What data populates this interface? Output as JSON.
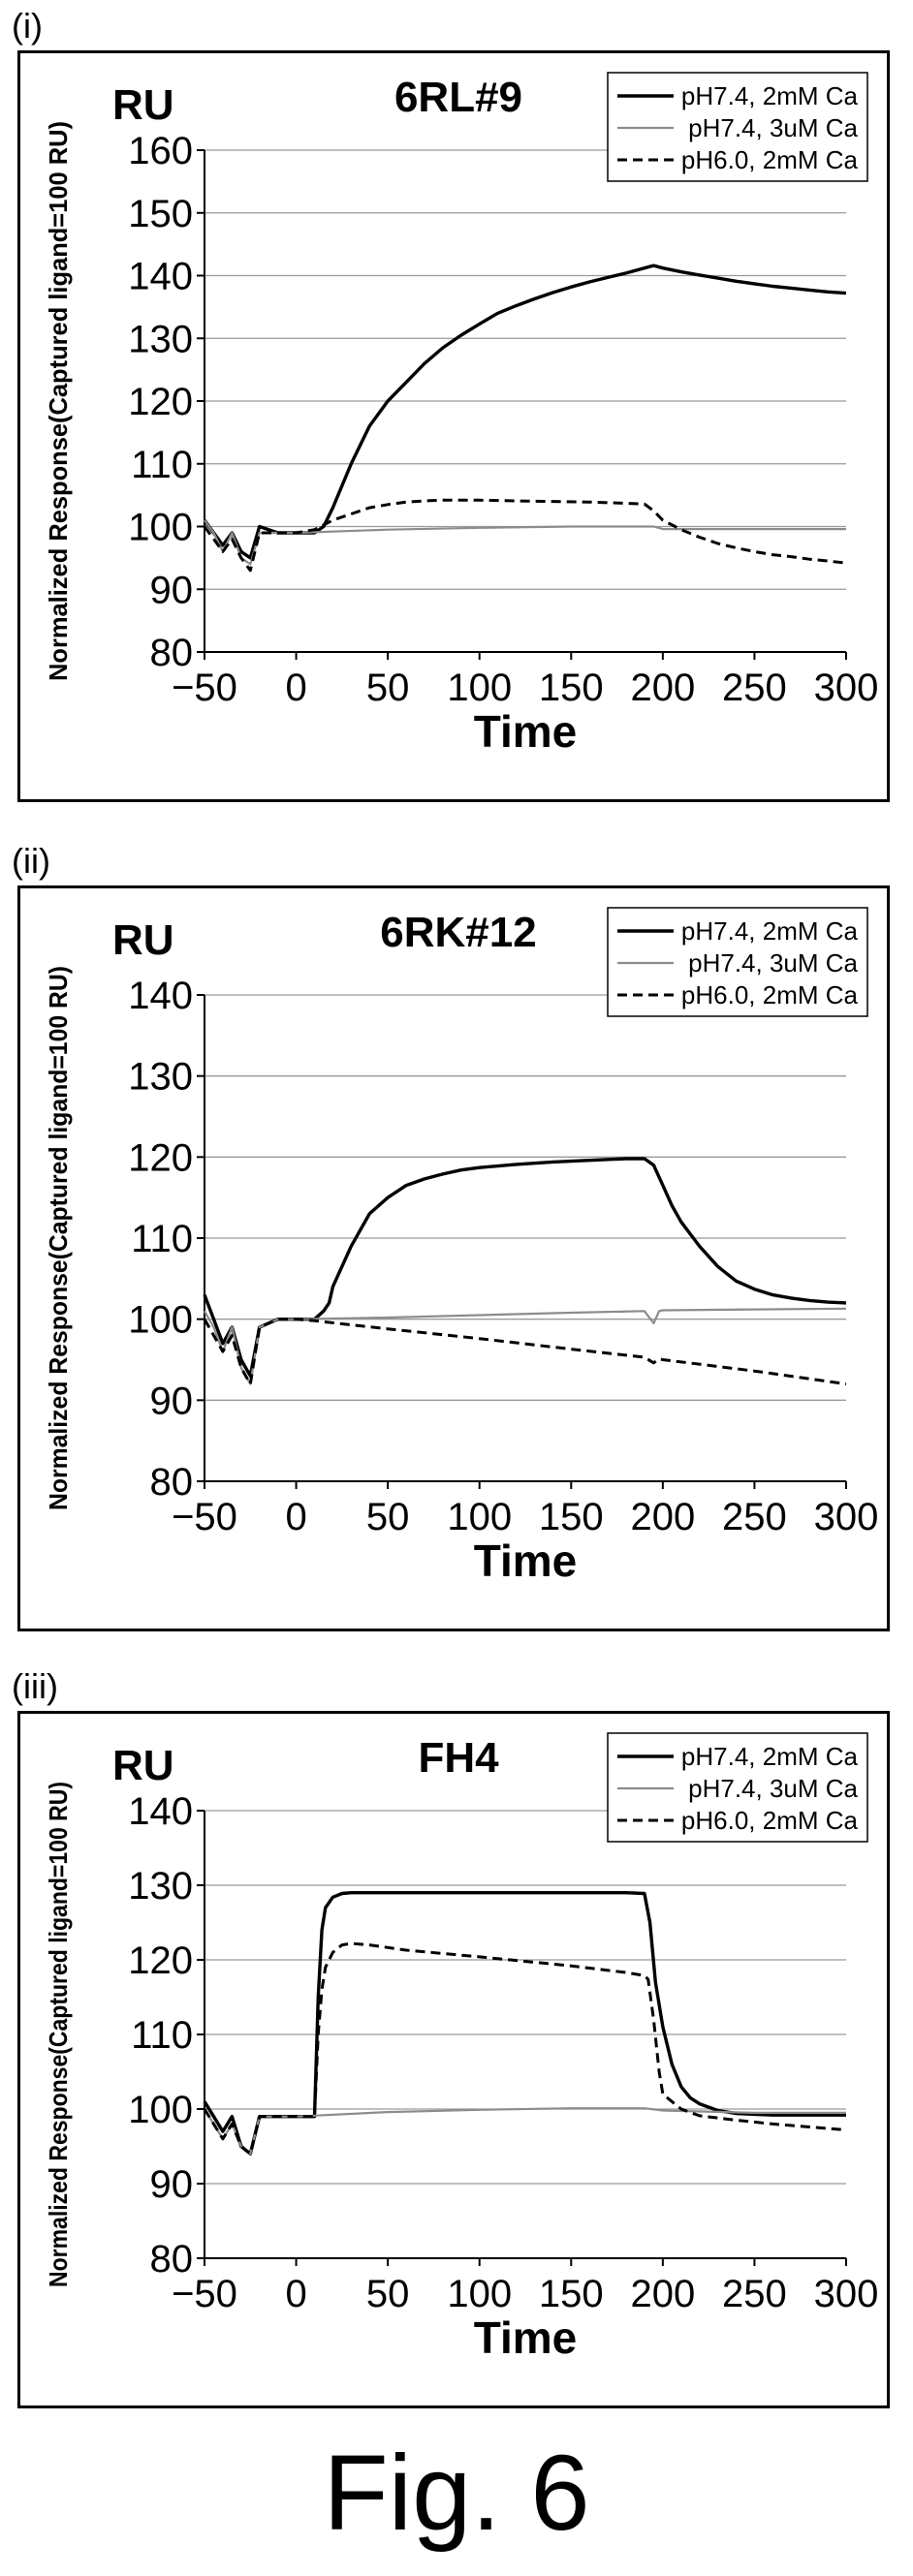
{
  "panels": [
    {
      "label": "(i)",
      "title": "6RL#9"
    },
    {
      "label": "(ii)",
      "title": "6RK#12"
    },
    {
      "label": "(iii)",
      "title": "FH4"
    }
  ],
  "figure_caption": "Fig. 6",
  "colors": {
    "series_solid_dark": "#000000",
    "series_solid_light": "#8c8c8c",
    "series_dashed": "#000000",
    "grid": "#9a9a9a"
  },
  "chart_data": [
    {
      "type": "line",
      "title": "6RL#9",
      "unit_label": "RU",
      "xlabel": "Time",
      "ylabel": "Normalized Response(Captured ligand=100 RU)",
      "xlim": [
        -50,
        300
      ],
      "ylim": [
        80,
        160
      ],
      "xticks": [
        -50,
        0,
        50,
        100,
        150,
        200,
        250,
        300
      ],
      "yticks": [
        80,
        90,
        100,
        110,
        120,
        130,
        140,
        150,
        160
      ],
      "grid": true,
      "legend_position": "top-right",
      "series": [
        {
          "name": "pH7.4, 2mM Ca",
          "style": "solid-dark",
          "x": [
            -50,
            -45,
            -40,
            -35,
            -30,
            -25,
            -20,
            -10,
            0,
            10,
            15,
            20,
            30,
            40,
            50,
            60,
            70,
            80,
            90,
            100,
            110,
            120,
            130,
            140,
            150,
            160,
            170,
            180,
            190,
            195,
            200,
            210,
            220,
            230,
            240,
            250,
            260,
            270,
            280,
            290,
            300
          ],
          "y": [
            101,
            99,
            97,
            99,
            96,
            95,
            100,
            99,
            99,
            99,
            100,
            103,
            110,
            116,
            120,
            123,
            126,
            128.5,
            130.5,
            132.3,
            134,
            135.2,
            136.3,
            137.3,
            138.2,
            139,
            139.7,
            140.4,
            141.2,
            141.6,
            141.2,
            140.6,
            140.1,
            139.6,
            139.1,
            138.7,
            138.3,
            138,
            137.7,
            137.4,
            137.2
          ]
        },
        {
          "name": "pH7.4, 3uM Ca",
          "style": "solid-light",
          "x": [
            -50,
            -45,
            -40,
            -35,
            -30,
            -25,
            -20,
            -10,
            0,
            50,
            100,
            150,
            195,
            200,
            250,
            300
          ],
          "y": [
            101,
            99,
            96,
            99,
            95,
            94,
            99,
            99,
            99,
            99.5,
            99.8,
            100,
            100,
            99.6,
            99.6,
            99.6
          ]
        },
        {
          "name": "pH6.0, 2mM Ca",
          "style": "dashed",
          "x": [
            -50,
            -45,
            -40,
            -35,
            -30,
            -25,
            -20,
            -10,
            0,
            10,
            20,
            30,
            40,
            50,
            60,
            70,
            80,
            90,
            100,
            120,
            140,
            160,
            180,
            190,
            195,
            200,
            210,
            220,
            230,
            240,
            250,
            260,
            270,
            280,
            290,
            300
          ],
          "y": [
            100,
            98,
            96,
            98,
            95,
            93,
            99,
            99,
            99,
            99.5,
            101,
            102,
            103,
            103.5,
            103.9,
            104.1,
            104.2,
            104.2,
            104.2,
            104.1,
            104,
            103.9,
            103.7,
            103.6,
            102.5,
            101,
            99.5,
            98.3,
            97.3,
            96.6,
            96,
            95.5,
            95.2,
            94.8,
            94.5,
            94.2
          ]
        }
      ]
    },
    {
      "type": "line",
      "title": "6RK#12",
      "unit_label": "RU",
      "xlabel": "Time",
      "ylabel": "Normalized Response(Captured ligand=100 RU)",
      "xlim": [
        -50,
        300
      ],
      "ylim": [
        80,
        140
      ],
      "xticks": [
        -50,
        0,
        50,
        100,
        150,
        200,
        250,
        300
      ],
      "yticks": [
        80,
        90,
        100,
        110,
        120,
        130,
        140
      ],
      "grid": true,
      "legend_position": "top-right",
      "series": [
        {
          "name": "pH7.4, 2mM Ca",
          "style": "solid-dark",
          "x": [
            -50,
            -45,
            -40,
            -35,
            -30,
            -25,
            -20,
            -10,
            0,
            10,
            15,
            18,
            20,
            30,
            40,
            50,
            60,
            70,
            80,
            90,
            100,
            120,
            140,
            160,
            180,
            190,
            195,
            200,
            205,
            210,
            220,
            230,
            240,
            250,
            260,
            270,
            280,
            290,
            300
          ],
          "y": [
            103,
            100,
            97,
            99,
            95,
            93,
            99,
            100,
            100,
            100,
            101,
            102,
            104,
            109,
            113,
            115,
            116.5,
            117.3,
            117.9,
            118.4,
            118.7,
            119.1,
            119.4,
            119.6,
            119.8,
            119.8,
            119,
            116.5,
            114,
            112,
            109,
            106.5,
            104.7,
            103.7,
            103,
            102.6,
            102.3,
            102.1,
            102
          ]
        },
        {
          "name": "pH7.4, 3uM Ca",
          "style": "solid-light",
          "x": [
            -50,
            -45,
            -40,
            -35,
            -30,
            -25,
            -20,
            -10,
            0,
            50,
            100,
            150,
            190,
            195,
            198,
            200,
            250,
            300
          ],
          "y": [
            101,
            99,
            96,
            99,
            94,
            92,
            99,
            100,
            100,
            100.2,
            100.5,
            100.8,
            101,
            99.5,
            101,
            101.1,
            101.2,
            101.3
          ]
        },
        {
          "name": "pH6.0, 2mM Ca",
          "style": "dashed",
          "x": [
            -50,
            -45,
            -40,
            -35,
            -30,
            -25,
            -20,
            -10,
            0,
            10,
            50,
            100,
            150,
            190,
            195,
            198,
            200,
            250,
            300
          ],
          "y": [
            100,
            98,
            96,
            98,
            94,
            92,
            99,
            100,
            100,
            99.8,
            98.8,
            97.6,
            96.3,
            95.3,
            94.6,
            95.1,
            95,
            93.6,
            92
          ]
        }
      ]
    },
    {
      "type": "line",
      "title": "FH4",
      "unit_label": "RU",
      "xlabel": "Time",
      "ylabel": "Normalized Response(Captured ligand=100 RU)",
      "xlim": [
        -50,
        300
      ],
      "ylim": [
        80,
        140
      ],
      "xticks": [
        -50,
        0,
        50,
        100,
        150,
        200,
        250,
        300
      ],
      "yticks": [
        80,
        90,
        100,
        110,
        120,
        130,
        140
      ],
      "grid": true,
      "legend_position": "top-right",
      "series": [
        {
          "name": "pH7.4, 2mM Ca",
          "style": "solid-dark",
          "x": [
            -50,
            -45,
            -40,
            -35,
            -30,
            -25,
            -20,
            -10,
            0,
            10,
            12,
            14,
            16,
            20,
            25,
            30,
            40,
            60,
            100,
            150,
            180,
            190,
            193,
            196,
            200,
            205,
            210,
            215,
            220,
            230,
            240,
            250,
            260,
            300
          ],
          "y": [
            101,
            99,
            97,
            99,
            95,
            94,
            99,
            99,
            99,
            99,
            115,
            124,
            127,
            128.4,
            128.9,
            129,
            129,
            129,
            129,
            129,
            129,
            128.9,
            125,
            117,
            111,
            106,
            103,
            101.5,
            100.7,
            99.8,
            99.4,
            99.3,
            99.2,
            99.2
          ]
        },
        {
          "name": "pH7.4, 3uM Ca",
          "style": "solid-light",
          "x": [
            -50,
            -45,
            -40,
            -35,
            -30,
            -25,
            -20,
            -10,
            0,
            50,
            100,
            150,
            190,
            200,
            250,
            300
          ],
          "y": [
            100,
            98,
            96,
            98,
            95,
            94,
            99,
            99,
            99,
            99.6,
            99.9,
            100.1,
            100.1,
            99.8,
            99.5,
            99.5
          ]
        },
        {
          "name": "pH6.0, 2mM Ca",
          "style": "dashed",
          "x": [
            -50,
            -45,
            -40,
            -35,
            -30,
            -25,
            -20,
            -10,
            0,
            10,
            12,
            14,
            16,
            20,
            25,
            30,
            40,
            60,
            100,
            150,
            180,
            190,
            192,
            195,
            198,
            200,
            205,
            210,
            220,
            240,
            260,
            280,
            300
          ],
          "y": [
            100,
            98,
            96,
            98,
            95,
            94,
            99,
            99,
            99,
            99,
            110,
            116,
            119,
            121,
            122,
            122.2,
            122,
            121.3,
            120.4,
            119.2,
            118.3,
            117.9,
            117.4,
            112,
            105,
            102,
            101,
            100,
            99.1,
            98.5,
            98,
            97.6,
            97.2
          ]
        }
      ]
    }
  ]
}
